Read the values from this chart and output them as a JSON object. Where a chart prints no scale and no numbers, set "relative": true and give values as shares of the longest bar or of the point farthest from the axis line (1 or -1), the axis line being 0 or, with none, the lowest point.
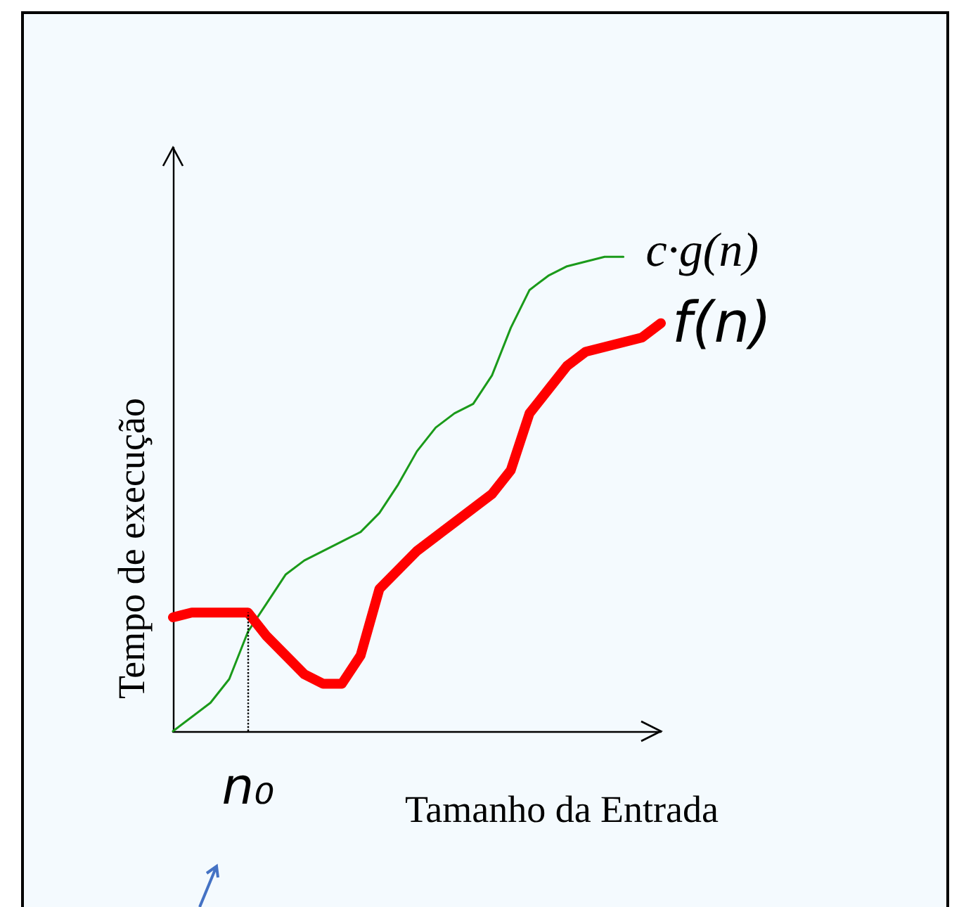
{
  "chart_data": {
    "type": "line",
    "relative": true,
    "xlabel": "Tamanho da Entrada",
    "ylabel": "Tempo de execução",
    "grid": false,
    "legend": false,
    "marker": "none",
    "line_style": "solid",
    "categories": [
      null,
      null,
      null,
      null,
      null,
      null,
      null,
      null,
      null,
      null,
      null,
      null,
      null,
      null,
      null,
      null,
      null,
      null,
      null,
      null,
      null,
      null,
      null,
      null,
      null,
      null,
      null
    ],
    "series": [
      {
        "name": "c·g(n)",
        "color": "#1a9a1a",
        "values": [
          0,
          0.03,
          0.06,
          0.11,
          0.21,
          0.27,
          0.33,
          0.36,
          0.38,
          0.4,
          0.42,
          0.46,
          0.52,
          0.59,
          0.64,
          0.67,
          0.69,
          0.75,
          0.85,
          0.93,
          0.96,
          0.98,
          0.99,
          1,
          1,
          null,
          null
        ]
      },
      {
        "name": "f(n)",
        "color": "#ff0000",
        "values": [
          0.24,
          0.25,
          0.25,
          0.25,
          0.25,
          0.2,
          0.16,
          0.12,
          0.1,
          0.1,
          0.16,
          0.3,
          0.34,
          0.38,
          0.41,
          0.44,
          0.47,
          0.5,
          0.55,
          0.67,
          0.72,
          0.77,
          0.8,
          0.81,
          0.82,
          0.83,
          0.86
        ]
      }
    ],
    "annotations": [
      "n₀"
    ]
  }
}
